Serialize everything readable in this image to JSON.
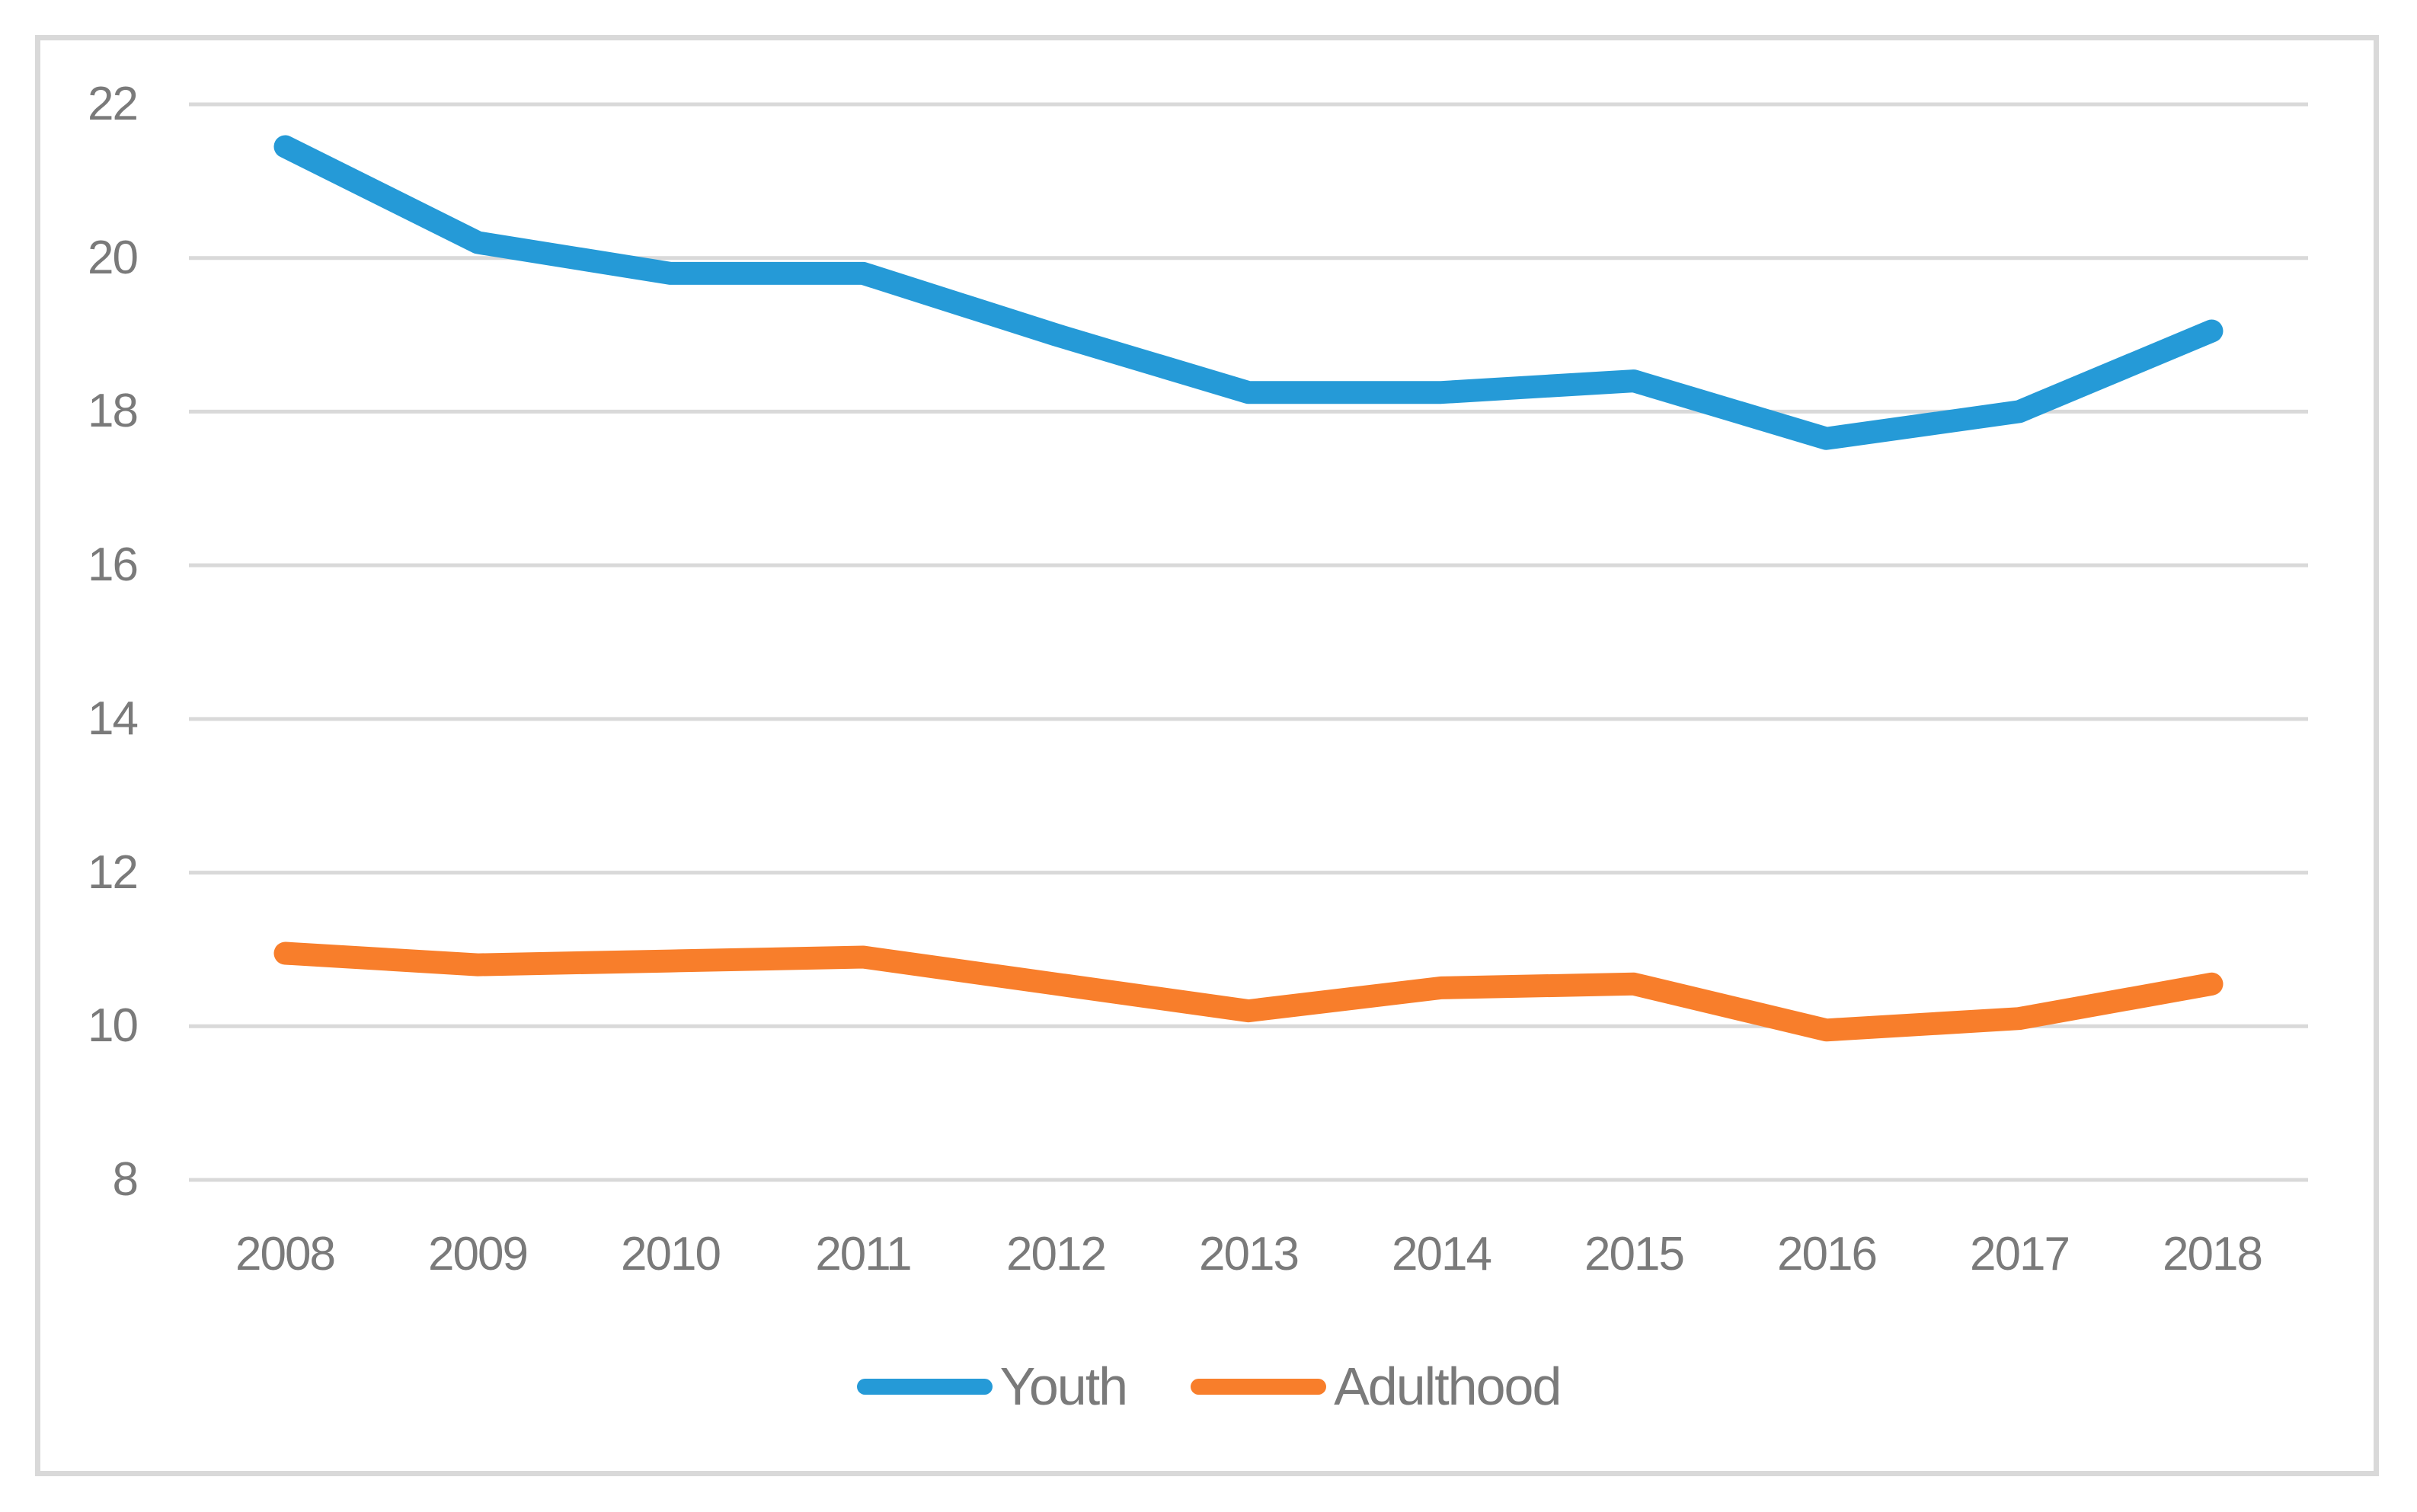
{
  "chart": {
    "background_color": "#FFFFFF",
    "frame_color": "#D9D9D9",
    "gridline_color": "#D9D9D9",
    "axis_text_color": "#7A7A7A"
  },
  "chart_data": {
    "type": "line",
    "title": "",
    "xlabel": "",
    "ylabel": "",
    "categories": [
      "2008",
      "2009",
      "2010",
      "2011",
      "2012",
      "2013",
      "2014",
      "2015",
      "2016",
      "2017",
      "2018"
    ],
    "series": [
      {
        "name": "Youth",
        "color": "#259AD7",
        "values": [
          21.45,
          20.2,
          19.8,
          19.8,
          19.0,
          18.25,
          18.25,
          18.4,
          17.65,
          18.0,
          19.05
        ]
      },
      {
        "name": "Adulthood",
        "color": "#F87E2B",
        "values": [
          10.95,
          10.8,
          10.85,
          10.9,
          10.55,
          10.2,
          10.5,
          10.55,
          9.95,
          10.1,
          10.55
        ]
      }
    ],
    "ylim": [
      8,
      22
    ],
    "yticks": [
      22,
      20,
      18,
      16,
      14,
      12,
      10,
      8
    ],
    "grid": "horizontal",
    "legend_position": "bottom",
    "legend_labels": [
      "Youth",
      "Adulthood"
    ]
  }
}
